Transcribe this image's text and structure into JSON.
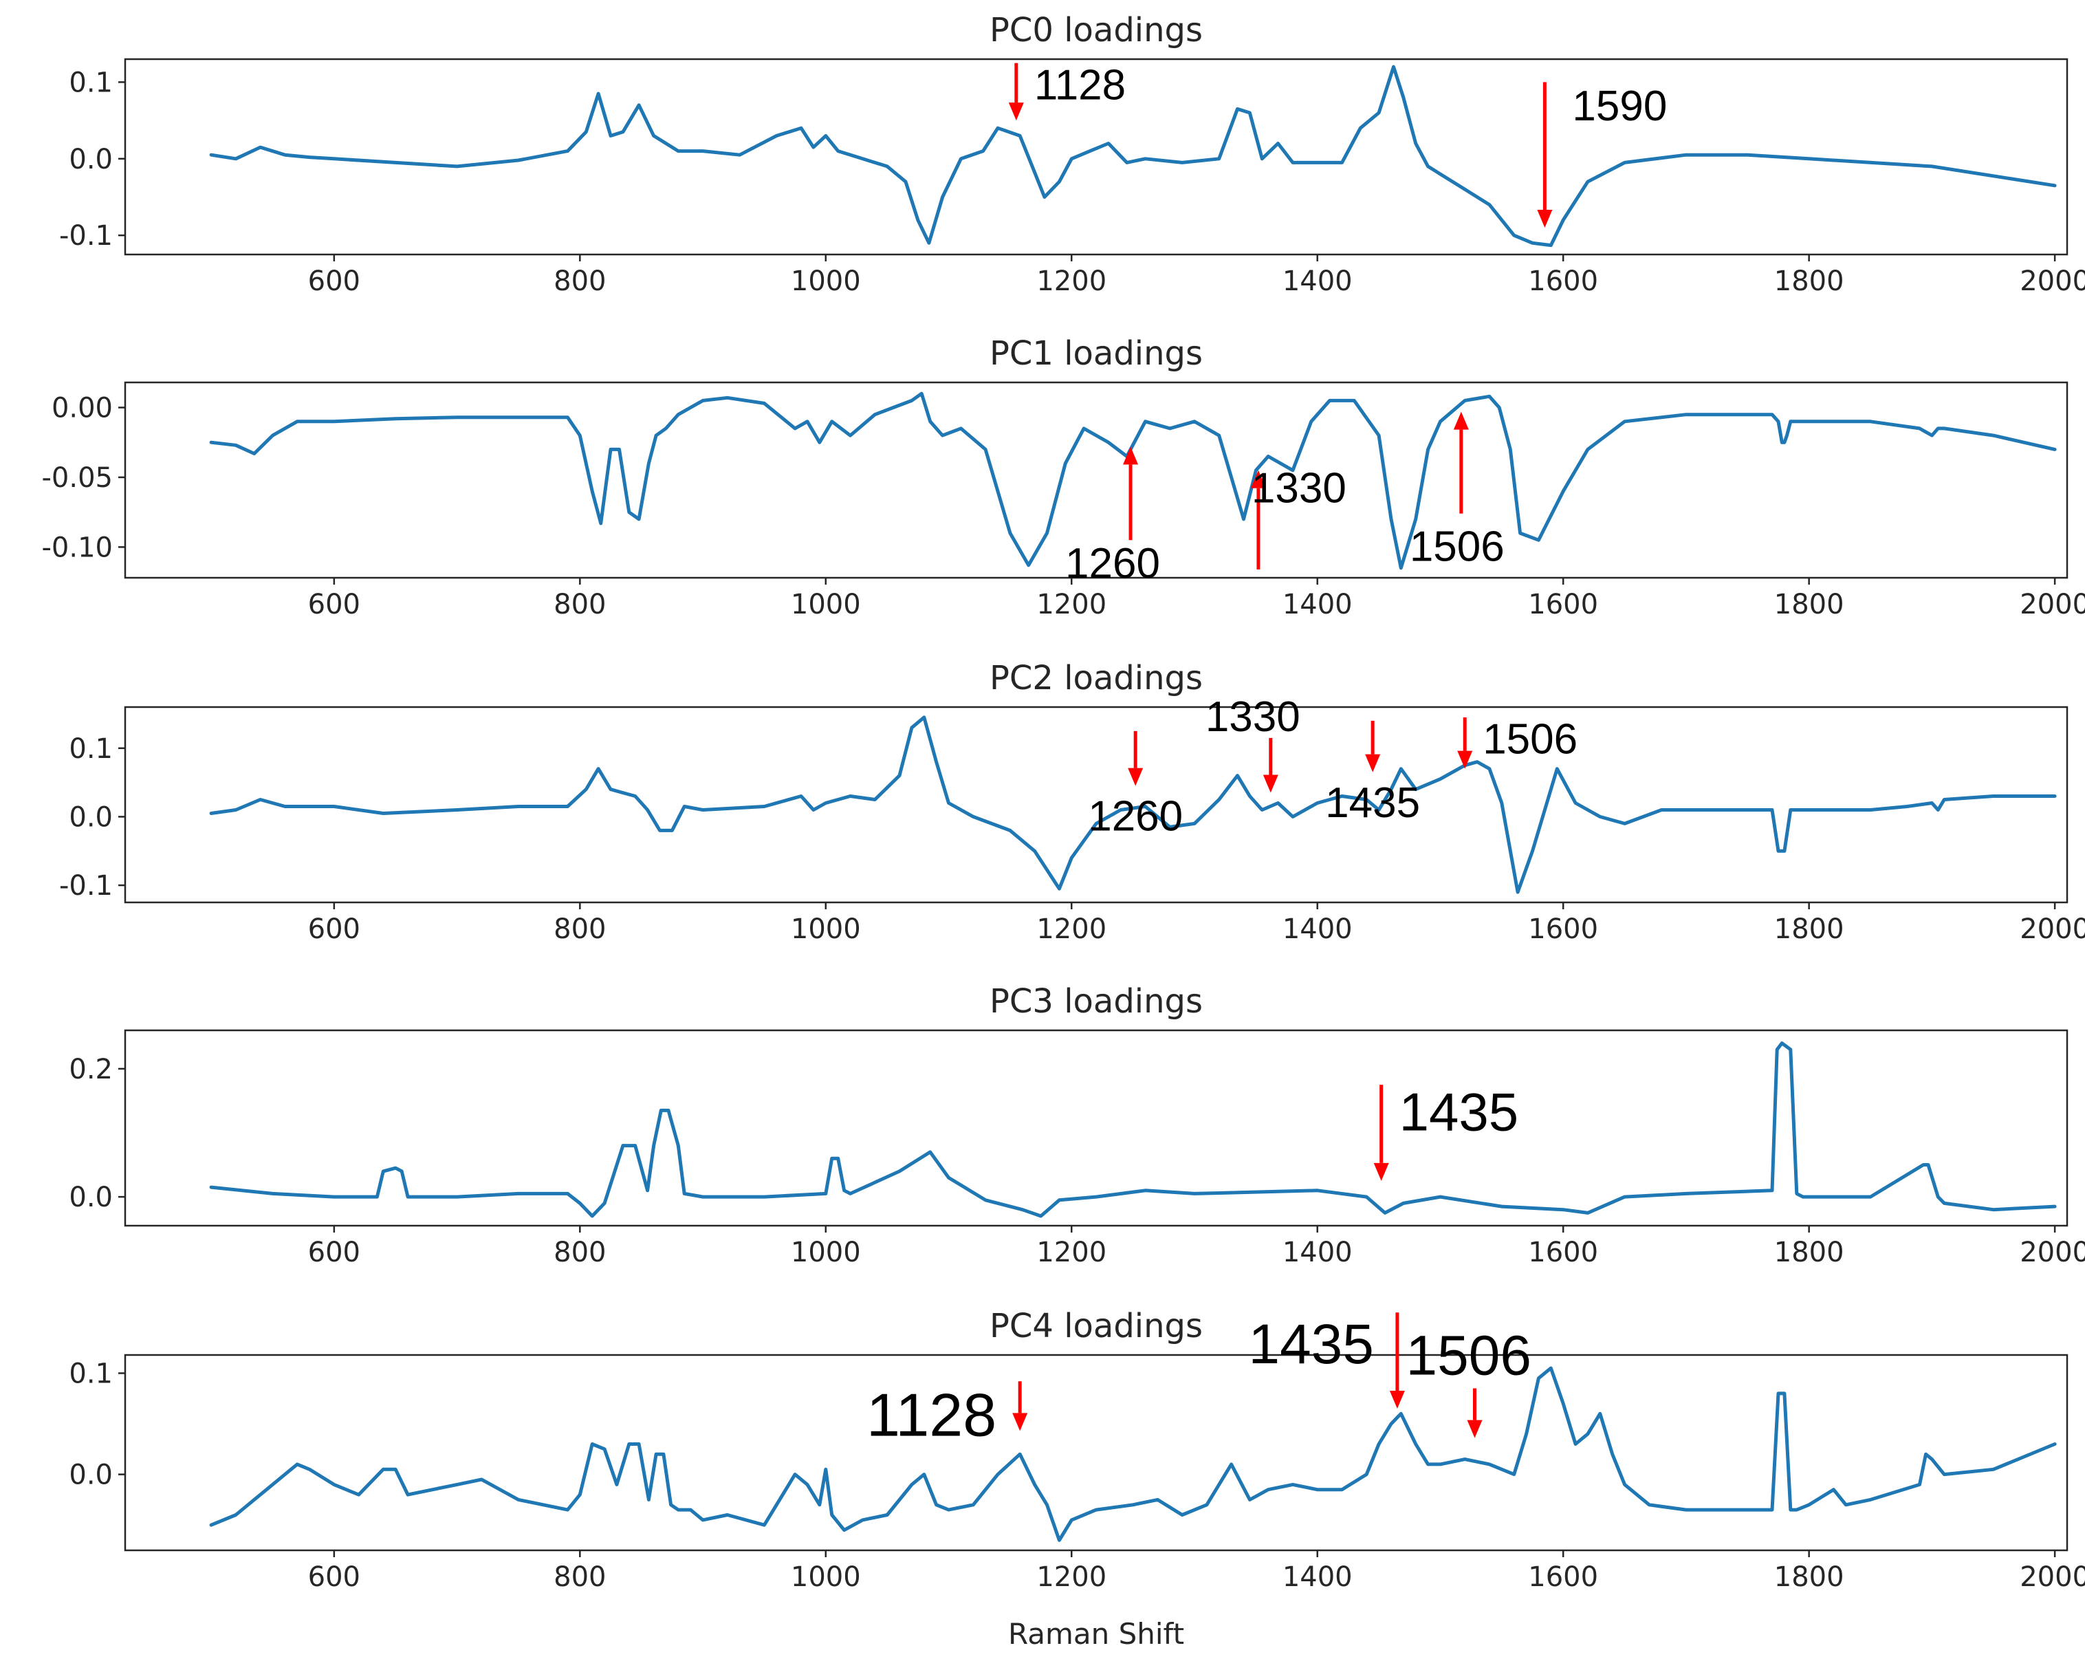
{
  "colors": {
    "series": "#1f77b4",
    "arrow": "#ff0000",
    "axis": "#262626"
  },
  "chart_data": [
    {
      "type": "line",
      "title": "PC0 loadings",
      "xlabel": "",
      "ylabel": "",
      "xlim": [
        430,
        2010
      ],
      "ylim": [
        -0.125,
        0.13
      ],
      "xticks": [
        600,
        800,
        1000,
        1200,
        1400,
        1600,
        1800,
        2000
      ],
      "yticks": [
        0.1,
        0.0,
        -0.1
      ],
      "ytick_labels": [
        "0.1",
        "0.0",
        "-0.1"
      ],
      "series": [
        {
          "name": "PC0",
          "x": [
            500,
            520,
            540,
            560,
            580,
            600,
            650,
            700,
            750,
            790,
            805,
            815,
            825,
            835,
            848,
            860,
            880,
            900,
            930,
            960,
            980,
            990,
            1000,
            1010,
            1030,
            1050,
            1065,
            1075,
            1084,
            1095,
            1110,
            1128,
            1140,
            1158,
            1168,
            1178,
            1190,
            1200,
            1215,
            1230,
            1245,
            1260,
            1290,
            1320,
            1335,
            1345,
            1355,
            1368,
            1380,
            1400,
            1420,
            1435,
            1450,
            1462,
            1470,
            1480,
            1490,
            1500,
            1520,
            1540,
            1560,
            1575,
            1590,
            1600,
            1620,
            1650,
            1700,
            1750,
            1800,
            1900,
            2000
          ],
          "values": [
            0.005,
            0.0,
            0.015,
            0.005,
            0.002,
            0.0,
            -0.005,
            -0.01,
            -0.002,
            0.01,
            0.035,
            0.085,
            0.03,
            0.035,
            0.07,
            0.03,
            0.01,
            0.01,
            0.005,
            0.03,
            0.04,
            0.015,
            0.03,
            0.01,
            0.0,
            -0.01,
            -0.03,
            -0.08,
            -0.11,
            -0.05,
            0.0,
            0.01,
            0.04,
            0.03,
            -0.01,
            -0.05,
            -0.03,
            0.0,
            0.01,
            0.02,
            -0.005,
            0.0,
            -0.005,
            0.0,
            0.065,
            0.06,
            0.0,
            0.02,
            -0.005,
            -0.005,
            -0.005,
            0.04,
            0.06,
            0.12,
            0.08,
            0.02,
            -0.01,
            -0.02,
            -0.04,
            -0.06,
            -0.1,
            -0.11,
            -0.113,
            -0.08,
            -0.03,
            -0.005,
            0.005,
            0.005,
            0.0,
            -0.01,
            -0.035
          ]
        }
      ],
      "annotations": [
        {
          "label": "1128",
          "x": 1155,
          "y_tail": 0.125,
          "y_head": 0.05,
          "font": 62
        },
        {
          "label": "1590",
          "x": 1585,
          "y_tail": 0.1,
          "y_head": -0.09,
          "font": 62
        }
      ]
    },
    {
      "type": "line",
      "title": "PC1 loadings",
      "xlabel": "",
      "ylabel": "",
      "xlim": [
        430,
        2010
      ],
      "ylim": [
        -0.122,
        0.018
      ],
      "xticks": [
        600,
        800,
        1000,
        1200,
        1400,
        1600,
        1800,
        2000
      ],
      "yticks": [
        0.0,
        -0.05,
        -0.1
      ],
      "ytick_labels": [
        "0.00",
        "-0.05",
        "-0.10"
      ],
      "series": [
        {
          "name": "PC1",
          "x": [
            500,
            520,
            535,
            550,
            570,
            600,
            650,
            700,
            750,
            790,
            800,
            810,
            817,
            825,
            832,
            840,
            848,
            856,
            862,
            870,
            880,
            900,
            920,
            950,
            975,
            985,
            995,
            1005,
            1020,
            1040,
            1055,
            1070,
            1078,
            1085,
            1095,
            1110,
            1130,
            1150,
            1165,
            1180,
            1195,
            1210,
            1230,
            1245,
            1260,
            1280,
            1300,
            1320,
            1330,
            1340,
            1350,
            1360,
            1380,
            1395,
            1410,
            1430,
            1450,
            1460,
            1468,
            1480,
            1490,
            1500,
            1520,
            1540,
            1548,
            1557,
            1565,
            1580,
            1600,
            1620,
            1650,
            1700,
            1770,
            1775,
            1778,
            1780,
            1782,
            1785,
            1800,
            1850,
            1890,
            1900,
            1905,
            1910,
            1950,
            2000
          ],
          "values": [
            -0.025,
            -0.027,
            -0.033,
            -0.02,
            -0.01,
            -0.01,
            -0.008,
            -0.007,
            -0.007,
            -0.007,
            -0.02,
            -0.06,
            -0.083,
            -0.03,
            -0.03,
            -0.075,
            -0.08,
            -0.04,
            -0.02,
            -0.015,
            -0.005,
            0.005,
            0.007,
            0.003,
            -0.015,
            -0.01,
            -0.025,
            -0.01,
            -0.02,
            -0.005,
            0.0,
            0.005,
            0.01,
            -0.01,
            -0.02,
            -0.015,
            -0.03,
            -0.09,
            -0.113,
            -0.09,
            -0.04,
            -0.015,
            -0.025,
            -0.035,
            -0.01,
            -0.015,
            -0.01,
            -0.02,
            -0.05,
            -0.08,
            -0.045,
            -0.035,
            -0.045,
            -0.01,
            0.005,
            0.005,
            -0.02,
            -0.08,
            -0.115,
            -0.08,
            -0.03,
            -0.01,
            0.005,
            0.008,
            0.0,
            -0.03,
            -0.09,
            -0.095,
            -0.06,
            -0.03,
            -0.01,
            -0.005,
            -0.005,
            -0.01,
            -0.025,
            -0.025,
            -0.02,
            -0.01,
            -0.01,
            -0.01,
            -0.015,
            -0.02,
            -0.015,
            -0.015,
            -0.02,
            -0.03
          ]
        }
      ],
      "annotations": [
        {
          "label": "1260",
          "x": 1248,
          "y_tail": -0.095,
          "y_head": -0.028,
          "font": 62
        },
        {
          "label": "1330",
          "x": 1352,
          "y_tail": -0.116,
          "y_head": -0.045,
          "font": 62
        },
        {
          "label": "1506",
          "x": 1517,
          "y_tail": -0.076,
          "y_head": -0.003,
          "font": 62
        }
      ]
    },
    {
      "type": "line",
      "title": "PC2 loadings",
      "xlabel": "",
      "ylabel": "",
      "xlim": [
        430,
        2010
      ],
      "ylim": [
        -0.125,
        0.16
      ],
      "xticks": [
        600,
        800,
        1000,
        1200,
        1400,
        1600,
        1800,
        2000
      ],
      "yticks": [
        0.1,
        0.0,
        -0.1
      ],
      "ytick_labels": [
        "0.1",
        "0.0",
        "-0.1"
      ],
      "series": [
        {
          "name": "PC2",
          "x": [
            500,
            520,
            540,
            560,
            600,
            640,
            700,
            750,
            790,
            805,
            815,
            825,
            835,
            845,
            855,
            865,
            875,
            885,
            900,
            950,
            980,
            990,
            1000,
            1020,
            1040,
            1060,
            1070,
            1080,
            1090,
            1100,
            1120,
            1150,
            1170,
            1190,
            1200,
            1220,
            1240,
            1260,
            1280,
            1300,
            1320,
            1335,
            1345,
            1355,
            1368,
            1380,
            1400,
            1420,
            1440,
            1450,
            1460,
            1468,
            1480,
            1500,
            1520,
            1530,
            1540,
            1550,
            1563,
            1575,
            1595,
            1610,
            1630,
            1650,
            1680,
            1700,
            1770,
            1775,
            1780,
            1785,
            1790,
            1800,
            1850,
            1880,
            1900,
            1905,
            1910,
            1950,
            2000
          ],
          "values": [
            0.005,
            0.01,
            0.025,
            0.015,
            0.015,
            0.005,
            0.01,
            0.015,
            0.015,
            0.04,
            0.07,
            0.04,
            0.035,
            0.03,
            0.01,
            -0.02,
            -0.02,
            0.015,
            0.01,
            0.015,
            0.03,
            0.01,
            0.02,
            0.03,
            0.025,
            0.06,
            0.13,
            0.145,
            0.08,
            0.02,
            0.0,
            -0.02,
            -0.05,
            -0.105,
            -0.06,
            -0.01,
            0.01,
            0.015,
            -0.015,
            -0.01,
            0.025,
            0.06,
            0.03,
            0.01,
            0.02,
            0.0,
            0.02,
            0.03,
            0.025,
            0.01,
            0.04,
            0.07,
            0.04,
            0.055,
            0.075,
            0.08,
            0.07,
            0.02,
            -0.11,
            -0.05,
            0.07,
            0.02,
            0.0,
            -0.01,
            0.01,
            0.01,
            0.01,
            -0.05,
            -0.05,
            0.01,
            0.01,
            0.01,
            0.01,
            0.015,
            0.02,
            0.01,
            0.025,
            0.03,
            0.03
          ]
        }
      ],
      "annotations": [
        {
          "label": "1260",
          "x": 1252,
          "y_tail": 0.125,
          "y_head": 0.045,
          "font": 62,
          "label_pos": "below"
        },
        {
          "label": "1330",
          "x": 1362,
          "y_tail": 0.115,
          "y_head": 0.035,
          "font": 62,
          "label_pos": "above"
        },
        {
          "label": "1435",
          "x": 1445,
          "y_tail": 0.14,
          "y_head": 0.065,
          "font": 62,
          "label_pos": "below"
        },
        {
          "label": "1506",
          "x": 1520,
          "y_tail": 0.145,
          "y_head": 0.07,
          "font": 62,
          "label_pos": "right"
        }
      ]
    },
    {
      "type": "line",
      "title": "PC3 loadings",
      "xlabel": "",
      "ylabel": "",
      "xlim": [
        430,
        2010
      ],
      "ylim": [
        -0.045,
        0.26
      ],
      "xticks": [
        600,
        800,
        1000,
        1200,
        1400,
        1600,
        1800,
        2000
      ],
      "yticks": [
        0.2,
        0.0
      ],
      "ytick_labels": [
        "0.2",
        "0.0"
      ],
      "series": [
        {
          "name": "PC3",
          "x": [
            500,
            550,
            600,
            635,
            640,
            650,
            655,
            660,
            700,
            750,
            790,
            800,
            810,
            820,
            835,
            845,
            855,
            860,
            866,
            872,
            880,
            885,
            900,
            950,
            1000,
            1005,
            1010,
            1015,
            1020,
            1060,
            1085,
            1100,
            1130,
            1160,
            1175,
            1190,
            1220,
            1260,
            1300,
            1400,
            1440,
            1455,
            1470,
            1500,
            1550,
            1600,
            1620,
            1650,
            1700,
            1770,
            1774,
            1778,
            1785,
            1790,
            1795,
            1850,
            1893,
            1897,
            1905,
            1910,
            1950,
            2000
          ],
          "values": [
            0.015,
            0.005,
            0.0,
            0.0,
            0.04,
            0.045,
            0.04,
            0.0,
            0.0,
            0.005,
            0.005,
            -0.01,
            -0.03,
            -0.01,
            0.08,
            0.08,
            0.01,
            0.08,
            0.135,
            0.135,
            0.08,
            0.005,
            0.0,
            0.0,
            0.005,
            0.06,
            0.06,
            0.01,
            0.005,
            0.04,
            0.07,
            0.03,
            -0.005,
            -0.02,
            -0.03,
            -0.005,
            0.0,
            0.01,
            0.005,
            0.01,
            0.0,
            -0.025,
            -0.01,
            0.0,
            -0.015,
            -0.02,
            -0.025,
            0.0,
            0.005,
            0.01,
            0.23,
            0.24,
            0.23,
            0.005,
            0.0,
            0.0,
            0.05,
            0.05,
            0.0,
            -0.01,
            -0.02,
            -0.015
          ]
        }
      ],
      "annotations": [
        {
          "label": "1435",
          "x": 1452,
          "y_tail": 0.175,
          "y_head": 0.025,
          "font": 78
        }
      ]
    },
    {
      "type": "line",
      "title": "PC4 loadings",
      "xlabel": "Raman Shift",
      "ylabel": "",
      "xlim": [
        430,
        2010
      ],
      "ylim": [
        -0.075,
        0.118
      ],
      "xticks": [
        600,
        800,
        1000,
        1200,
        1400,
        1600,
        1800,
        2000
      ],
      "yticks": [
        0.1,
        0.0
      ],
      "ytick_labels": [
        "0.1",
        "0.0"
      ],
      "series": [
        {
          "name": "PC4",
          "x": [
            500,
            520,
            540,
            560,
            570,
            580,
            600,
            620,
            640,
            650,
            660,
            700,
            720,
            750,
            790,
            800,
            810,
            820,
            830,
            840,
            848,
            856,
            862,
            868,
            874,
            880,
            890,
            900,
            920,
            950,
            975,
            985,
            995,
            1000,
            1005,
            1015,
            1030,
            1050,
            1070,
            1080,
            1090,
            1100,
            1120,
            1140,
            1158,
            1170,
            1180,
            1190,
            1200,
            1220,
            1250,
            1270,
            1290,
            1310,
            1330,
            1345,
            1360,
            1380,
            1400,
            1420,
            1440,
            1450,
            1460,
            1468,
            1480,
            1490,
            1500,
            1520,
            1540,
            1560,
            1570,
            1580,
            1590,
            1600,
            1610,
            1620,
            1630,
            1640,
            1650,
            1670,
            1700,
            1770,
            1775,
            1780,
            1785,
            1790,
            1800,
            1820,
            1830,
            1850,
            1890,
            1895,
            1900,
            1910,
            1950,
            2000
          ],
          "values": [
            -0.05,
            -0.04,
            -0.02,
            0.0,
            0.01,
            0.005,
            -0.01,
            -0.02,
            0.005,
            0.005,
            -0.02,
            -0.01,
            -0.005,
            -0.025,
            -0.035,
            -0.02,
            0.03,
            0.025,
            -0.01,
            0.03,
            0.03,
            -0.025,
            0.02,
            0.02,
            -0.03,
            -0.035,
            -0.035,
            -0.045,
            -0.04,
            -0.05,
            0.0,
            -0.01,
            -0.03,
            0.005,
            -0.04,
            -0.055,
            -0.045,
            -0.04,
            -0.01,
            0.0,
            -0.03,
            -0.035,
            -0.03,
            0.0,
            0.02,
            -0.01,
            -0.03,
            -0.065,
            -0.045,
            -0.035,
            -0.03,
            -0.025,
            -0.04,
            -0.03,
            0.01,
            -0.025,
            -0.015,
            -0.01,
            -0.015,
            -0.015,
            0.0,
            0.03,
            0.05,
            0.06,
            0.03,
            0.01,
            0.01,
            0.015,
            0.01,
            0.0,
            0.04,
            0.095,
            0.105,
            0.07,
            0.03,
            0.04,
            0.06,
            0.02,
            -0.01,
            -0.03,
            -0.035,
            -0.035,
            0.08,
            0.08,
            -0.035,
            -0.035,
            -0.03,
            -0.015,
            -0.03,
            -0.025,
            -0.01,
            0.02,
            0.015,
            0.0,
            0.005,
            0.03
          ]
        }
      ],
      "annotations": [
        {
          "label": "1128",
          "x": 1158,
          "y_tail": 0.092,
          "y_head": 0.043,
          "font": 88,
          "label_pos": "left"
        },
        {
          "label": "1435",
          "x": 1465,
          "y_tail": 0.16,
          "y_head": 0.065,
          "font": 82,
          "label_pos": "left"
        },
        {
          "label": "1506",
          "x": 1528,
          "y_tail": 0.085,
          "y_head": 0.036,
          "font": 82,
          "label_pos": "aboveright"
        }
      ]
    }
  ]
}
